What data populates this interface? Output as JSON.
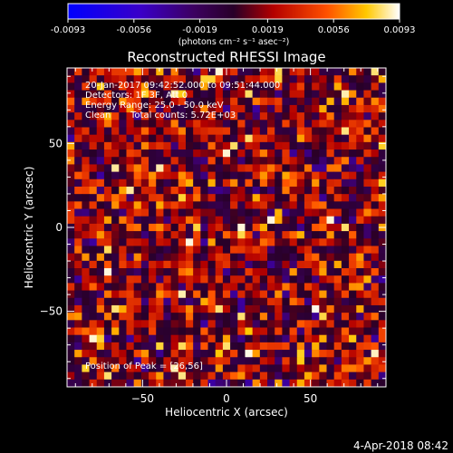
{
  "colorbar": {
    "tick_labels": [
      "-0.0093",
      "-0.0056",
      "-0.0019",
      "0.0019",
      "0.0056",
      "0.0093"
    ],
    "tick_values": [
      -0.0093,
      -0.0056,
      -0.0019,
      0.0019,
      0.0056,
      0.0093
    ],
    "range": [
      -0.0093,
      0.0093
    ],
    "unit_label": "(photons cm⁻² s⁻¹ asec⁻²)"
  },
  "chart_data": {
    "type": "heatmap",
    "title": "Reconstructed RHESSI Image",
    "xlabel": "Heliocentric X (arcsec)",
    "ylabel": "Heliocentric Y (arcsec)",
    "xlim": [
      -95,
      95
    ],
    "ylim": [
      -95,
      95
    ],
    "x_ticks": [
      -50,
      0,
      50
    ],
    "y_ticks": [
      -50,
      0,
      50
    ],
    "grid": false,
    "colormap": "rhessi hot: blue → purple → red → orange → yellow → white",
    "value_range": [
      -0.0093,
      0.0093
    ],
    "nx": 43,
    "ny": 43,
    "peak_position": [
      26,
      56
    ],
    "total_counts": "5.72E+03",
    "annotations": [
      "20-Jan-2017 09:42:52.000 to 09:51:44.000",
      "Detectors: 1F 3F, Att 0",
      "Energy Range: 25.0 - 50.0 keV",
      "Clean",
      "Total counts: 5.72E+03",
      "Position of Peak = [26,56]"
    ]
  },
  "footer": {
    "timestamp": "4-Apr-2018 08:42"
  },
  "colors": {
    "background": "#000000",
    "foreground": "#ffffff"
  }
}
